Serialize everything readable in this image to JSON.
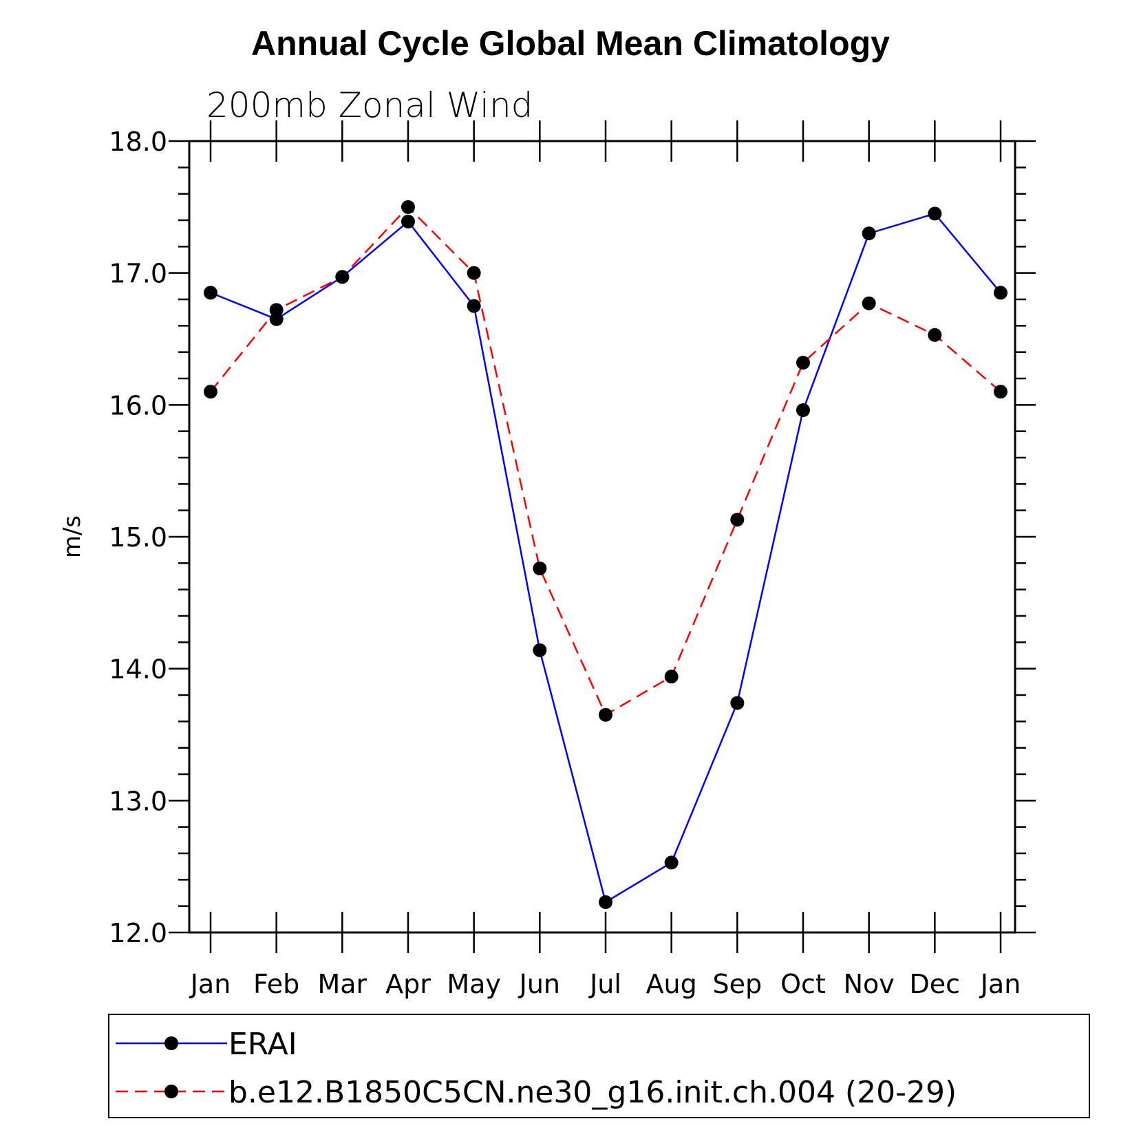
{
  "chart_data": {
    "type": "line",
    "title": "Annual Cycle Global Mean Climatology",
    "subtitle": "200mb Zonal Wind",
    "xlabel": "",
    "ylabel": "m/s",
    "categories": [
      "Jan",
      "Feb",
      "Mar",
      "Apr",
      "May",
      "Jun",
      "Jul",
      "Aug",
      "Sep",
      "Oct",
      "Nov",
      "Dec",
      "Jan"
    ],
    "ylim": [
      12.0,
      18.0
    ],
    "yticks": [
      "12.0",
      "13.0",
      "14.0",
      "15.0",
      "16.0",
      "17.0",
      "18.0"
    ],
    "yminor_step": 0.2,
    "grid": false,
    "legend_placement": "bottom",
    "series": [
      {
        "name": "ERAI",
        "color": "#0000ff",
        "dash": "solid",
        "marker": "filled-circle",
        "values": [
          16.85,
          16.65,
          16.97,
          17.39,
          16.75,
          14.14,
          12.23,
          12.53,
          13.74,
          15.96,
          17.3,
          17.45,
          16.85
        ]
      },
      {
        "name": "b.e12.B1850C5CN.ne30_g16.init.ch.004 (20-29)",
        "color": "#ff0000",
        "dash": "dashed",
        "marker": "filled-circle",
        "values": [
          16.1,
          16.72,
          16.97,
          17.5,
          17.0,
          14.76,
          13.65,
          13.94,
          15.13,
          16.32,
          16.77,
          16.53,
          16.1
        ]
      }
    ]
  }
}
